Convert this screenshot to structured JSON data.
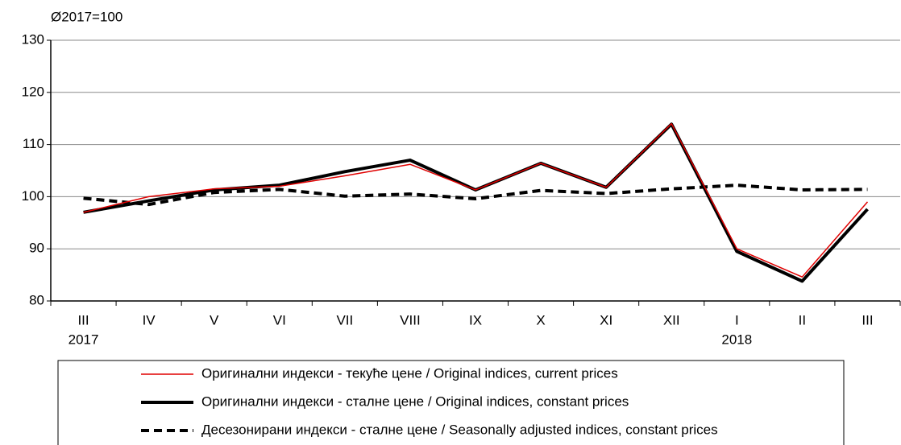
{
  "chart_data": {
    "type": "line",
    "y_unit_label": "Ø2017=100",
    "categories": [
      "III",
      "IV",
      "V",
      "VI",
      "VII",
      "VIII",
      "IX",
      "X",
      "XI",
      "XII",
      "I",
      "II",
      "III"
    ],
    "years": [
      "2017",
      null,
      null,
      null,
      null,
      null,
      null,
      null,
      null,
      null,
      "2018",
      null,
      null
    ],
    "ylim": [
      80,
      130
    ],
    "yticks": [
      80,
      90,
      100,
      110,
      120,
      130
    ],
    "grid": true,
    "series": [
      {
        "name": "Оригинални индекси - текуће цене / Original indices, current prices",
        "color": "#e00000",
        "style": "solid",
        "width": 1.5,
        "values": [
          97,
          100,
          101.5,
          102,
          104,
          106.2,
          101.3,
          106.4,
          101.8,
          114,
          90,
          84.6,
          99
        ]
      },
      {
        "name": "Оригинални индекси - сталне цене / Original indices, constant prices",
        "color": "#000000",
        "style": "solid",
        "width": 4,
        "values": [
          97,
          99.2,
          101.3,
          102.2,
          104.8,
          107,
          101.3,
          106.4,
          101.8,
          113.9,
          89.5,
          83.8,
          97.6
        ]
      },
      {
        "name": "Десезонирани индекси - сталне цене / Seasonally adjusted indices, constant prices",
        "color": "#000000",
        "style": "dashed",
        "width": 4,
        "values": [
          99.7,
          98.5,
          100.8,
          101.4,
          100.1,
          100.5,
          99.6,
          101.2,
          100.6,
          101.5,
          102.2,
          101.3,
          101.4
        ]
      }
    ]
  }
}
